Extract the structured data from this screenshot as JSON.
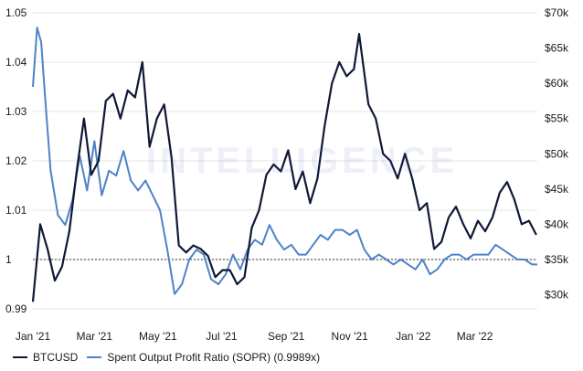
{
  "watermark_text": "INTELLIGENCE",
  "legend": {
    "btc_label": "BTCUSD",
    "sopr_label": "Spent Output Profit Ratio (SOPR) (0.9989x)"
  },
  "colors": {
    "btc": "#0f1838",
    "sopr": "#4e82c8",
    "grid": "#e6e6e6",
    "reference_line": "#333333"
  },
  "chart_data": {
    "type": "line",
    "title": "",
    "xlabel": "",
    "x_ticks": [
      "Jan '21",
      "Mar '21",
      "May '21",
      "Jul '21",
      "Sep '21",
      "Nov '21",
      "Jan '22",
      "Mar '22"
    ],
    "x_range": [
      "2021-01-01",
      "2022-04-30"
    ],
    "y_left": {
      "label": "",
      "range": [
        0.99,
        1.05
      ],
      "ticks": [
        "0.99",
        "1",
        "1.01",
        "1.02",
        "1.03",
        "1.04",
        "1.05"
      ]
    },
    "y_right": {
      "label": "",
      "range": [
        28000,
        70000
      ],
      "ticks": [
        "$30k",
        "$35k",
        "$40k",
        "$45k",
        "$50k",
        "$55k",
        "$60k",
        "$65k",
        "$70k"
      ]
    },
    "reference_line": {
      "axis": "left",
      "value": 1.0,
      "style": "dotted"
    },
    "grid": {
      "horizontal": true,
      "vertical": false
    },
    "legend_position": "bottom-left",
    "series": [
      {
        "name": "BTCUSD",
        "axis": "right",
        "x": [
          "2021-01-01",
          "2021-01-08",
          "2021-01-15",
          "2021-01-22",
          "2021-01-29",
          "2021-02-05",
          "2021-02-12",
          "2021-02-19",
          "2021-02-26",
          "2021-03-05",
          "2021-03-12",
          "2021-03-19",
          "2021-03-26",
          "2021-04-02",
          "2021-04-09",
          "2021-04-16",
          "2021-04-23",
          "2021-04-30",
          "2021-05-07",
          "2021-05-14",
          "2021-05-21",
          "2021-05-28",
          "2021-06-04",
          "2021-06-11",
          "2021-06-18",
          "2021-06-25",
          "2021-07-02",
          "2021-07-09",
          "2021-07-16",
          "2021-07-23",
          "2021-07-30",
          "2021-08-06",
          "2021-08-13",
          "2021-08-20",
          "2021-08-27",
          "2021-09-03",
          "2021-09-10",
          "2021-09-17",
          "2021-09-24",
          "2021-10-01",
          "2021-10-08",
          "2021-10-15",
          "2021-10-22",
          "2021-10-29",
          "2021-11-05",
          "2021-11-10",
          "2021-11-19",
          "2021-11-26",
          "2021-12-03",
          "2021-12-10",
          "2021-12-17",
          "2021-12-24",
          "2021-12-31",
          "2022-01-07",
          "2022-01-14",
          "2022-01-21",
          "2022-01-28",
          "2022-02-04",
          "2022-02-11",
          "2022-02-18",
          "2022-02-25",
          "2022-03-04",
          "2022-03-11",
          "2022-03-18",
          "2022-03-25",
          "2022-04-01",
          "2022-04-08",
          "2022-04-15",
          "2022-04-22",
          "2022-04-29"
        ],
        "values": [
          29000,
          40000,
          36500,
          32000,
          34000,
          39000,
          47500,
          55000,
          47000,
          49000,
          57500,
          58500,
          55000,
          59000,
          58000,
          63000,
          51000,
          55000,
          57000,
          49500,
          37000,
          36000,
          37000,
          36500,
          35500,
          32500,
          33500,
          33500,
          31500,
          32500,
          39500,
          42000,
          47000,
          48500,
          47500,
          50500,
          45000,
          47500,
          43000,
          46500,
          54000,
          60000,
          63000,
          61000,
          62000,
          67000,
          57000,
          55000,
          50000,
          49000,
          46500,
          50000,
          46500,
          42000,
          43000,
          36500,
          37500,
          41000,
          42500,
          40000,
          38000,
          40500,
          39000,
          41000,
          44500,
          46000,
          43500,
          40000,
          40500,
          38500
        ]
      },
      {
        "name": "Spent Output Profit Ratio (SOPR) (0.9989x)",
        "axis": "left",
        "x": [
          "2021-01-01",
          "2021-01-05",
          "2021-01-09",
          "2021-01-13",
          "2021-01-18",
          "2021-01-25",
          "2021-02-01",
          "2021-02-08",
          "2021-02-15",
          "2021-02-22",
          "2021-03-01",
          "2021-03-08",
          "2021-03-15",
          "2021-03-22",
          "2021-03-29",
          "2021-04-05",
          "2021-04-12",
          "2021-04-19",
          "2021-04-26",
          "2021-05-03",
          "2021-05-10",
          "2021-05-17",
          "2021-05-24",
          "2021-05-31",
          "2021-06-07",
          "2021-06-14",
          "2021-06-21",
          "2021-06-28",
          "2021-07-05",
          "2021-07-12",
          "2021-07-19",
          "2021-07-26",
          "2021-08-02",
          "2021-08-09",
          "2021-08-16",
          "2021-08-23",
          "2021-08-30",
          "2021-09-06",
          "2021-09-13",
          "2021-09-20",
          "2021-09-27",
          "2021-10-04",
          "2021-10-11",
          "2021-10-18",
          "2021-10-25",
          "2021-11-01",
          "2021-11-08",
          "2021-11-15",
          "2021-11-22",
          "2021-11-29",
          "2021-12-06",
          "2021-12-13",
          "2021-12-20",
          "2021-12-27",
          "2022-01-03",
          "2022-01-10",
          "2022-01-17",
          "2022-01-24",
          "2022-01-31",
          "2022-02-07",
          "2022-02-14",
          "2022-02-21",
          "2022-02-28",
          "2022-03-07",
          "2022-03-14",
          "2022-03-21",
          "2022-03-28",
          "2022-04-04",
          "2022-04-11",
          "2022-04-18",
          "2022-04-25",
          "2022-04-30"
        ],
        "values": [
          1.035,
          1.047,
          1.044,
          1.032,
          1.018,
          1.009,
          1.007,
          1.012,
          1.021,
          1.014,
          1.024,
          1.013,
          1.018,
          1.017,
          1.022,
          1.016,
          1.014,
          1.016,
          1.013,
          1.01,
          1.002,
          0.993,
          0.995,
          1.0,
          1.002,
          1.001,
          0.996,
          0.995,
          0.997,
          1.001,
          0.998,
          1.002,
          1.004,
          1.003,
          1.007,
          1.004,
          1.002,
          1.003,
          1.001,
          1.001,
          1.003,
          1.005,
          1.004,
          1.006,
          1.006,
          1.005,
          1.006,
          1.002,
          1.0,
          1.001,
          1.0,
          0.999,
          1.0,
          0.999,
          0.998,
          1.0,
          0.997,
          0.998,
          1.0,
          1.001,
          1.001,
          1.0,
          1.001,
          1.001,
          1.001,
          1.003,
          1.002,
          1.001,
          1.0,
          1.0,
          0.999,
          0.999
        ]
      }
    ]
  }
}
